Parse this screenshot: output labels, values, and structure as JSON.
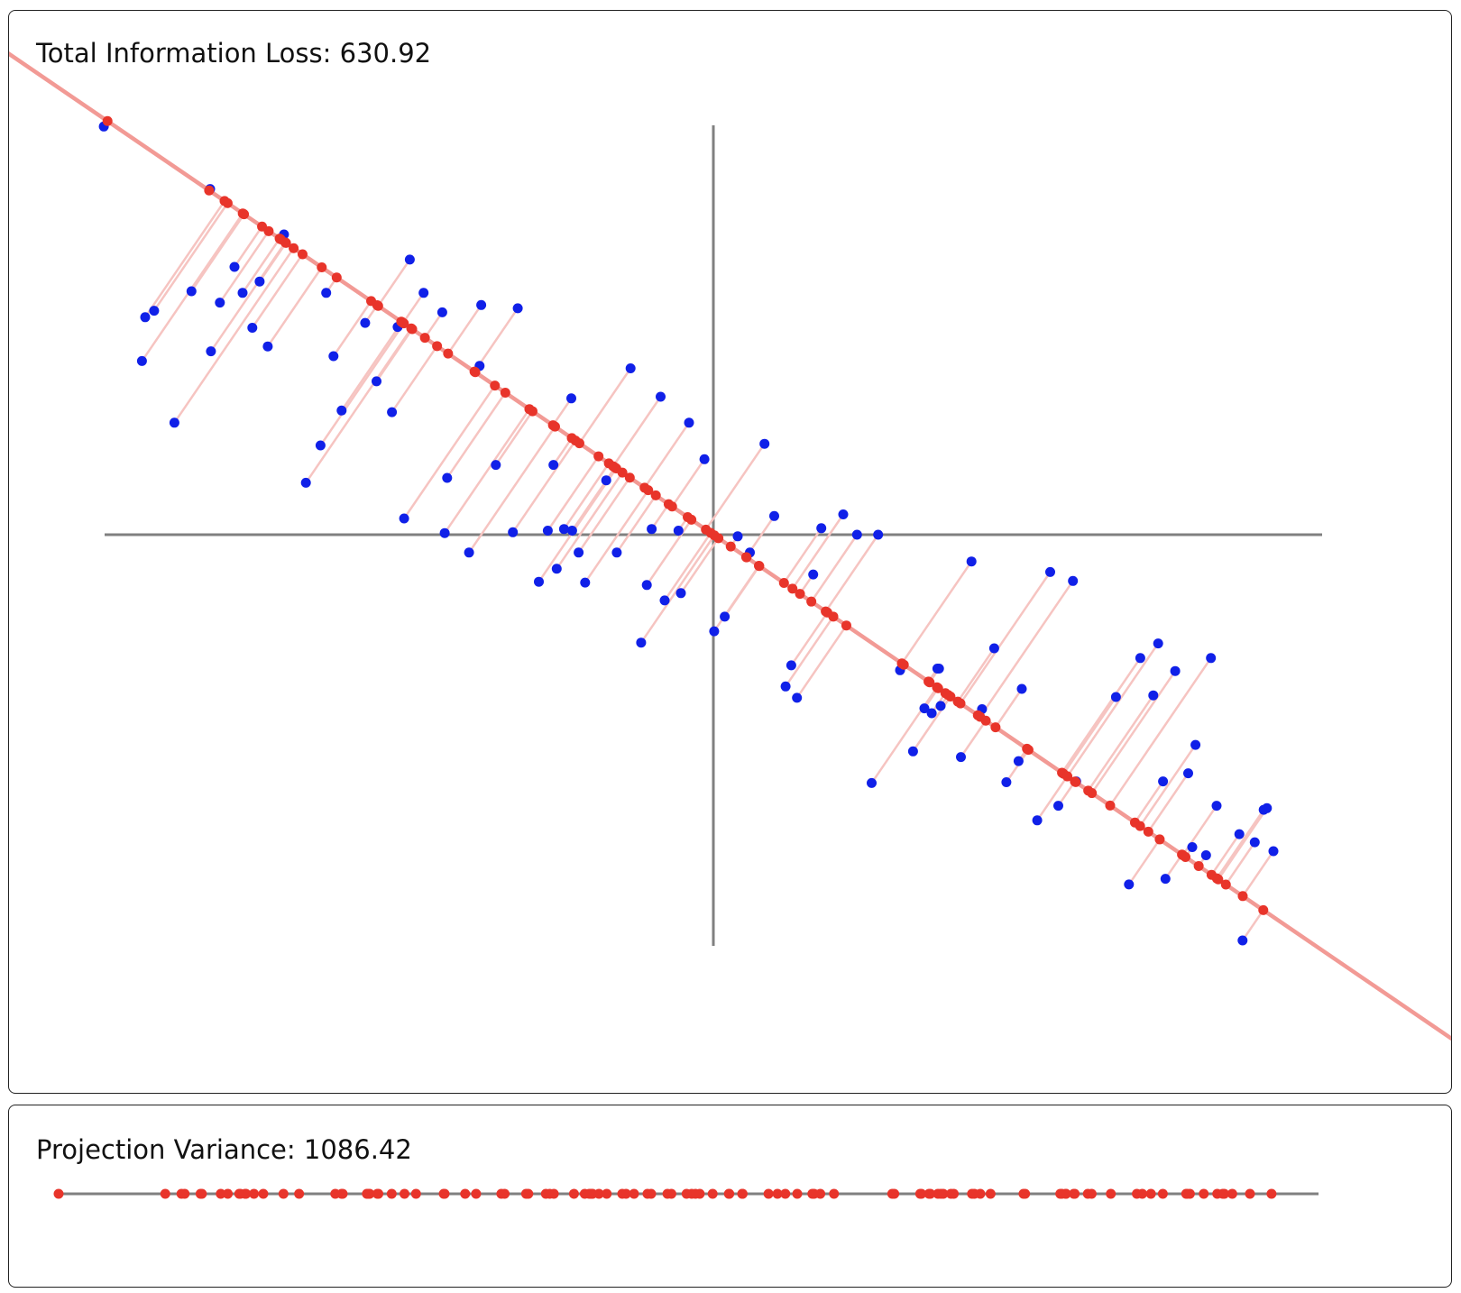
{
  "loss_panel": {
    "label": "Total Information Loss:",
    "value": "630.92"
  },
  "variance_panel": {
    "label": "Projection Variance:",
    "value": "1086.42"
  },
  "colors": {
    "data_point": "#1020e8",
    "projected_point": "#e8342a",
    "projection_line": "#f29a95",
    "residual_line": "#f6c4c1",
    "axis": "#808080"
  },
  "chart_data": {
    "type": "scatter",
    "title": "",
    "xlabel": "",
    "ylabel": "",
    "xlim": [
      -75,
      75
    ],
    "ylim": [
      -50,
      50
    ],
    "grid": false,
    "principal_direction": [
      0.826,
      -0.564
    ],
    "points": [
      [
        -75.1,
        50.3
      ],
      [
        -62.0,
        42.6
      ],
      [
        -52.9,
        37.0
      ],
      [
        -64.3,
        30.0
      ],
      [
        -55.9,
        31.2
      ],
      [
        -61.9,
        22.6
      ],
      [
        -60.8,
        28.6
      ],
      [
        -59.0,
        33.0
      ],
      [
        -68.9,
        27.6
      ],
      [
        -70.4,
        21.4
      ],
      [
        -70.0,
        26.8
      ],
      [
        -66.4,
        13.8
      ],
      [
        -58.0,
        29.8
      ],
      [
        -54.9,
        23.2
      ],
      [
        -56.8,
        25.5
      ],
      [
        -47.7,
        29.8
      ],
      [
        -37.4,
        33.9
      ],
      [
        -38.9,
        25.6
      ],
      [
        -35.7,
        29.8
      ],
      [
        -42.9,
        26.1
      ],
      [
        -46.8,
        22.0
      ],
      [
        -45.8,
        15.3
      ],
      [
        -48.4,
        11.0
      ],
      [
        -33.4,
        27.4
      ],
      [
        -41.5,
        18.9
      ],
      [
        -28.6,
        28.3
      ],
      [
        -24.1,
        27.9
      ],
      [
        -39.6,
        15.1
      ],
      [
        -28.8,
        20.8
      ],
      [
        -50.2,
        6.4
      ],
      [
        -38.1,
        2.0
      ],
      [
        -32.8,
        7.0
      ],
      [
        -17.5,
        16.8
      ],
      [
        -19.7,
        8.6
      ],
      [
        -20.4,
        0.5
      ],
      [
        -24.7,
        0.3
      ],
      [
        -33.1,
        0.2
      ],
      [
        -30.1,
        -2.2
      ],
      [
        -26.8,
        8.6
      ],
      [
        -13.2,
        6.7
      ],
      [
        -18.4,
        0.7
      ],
      [
        -21.5,
        -5.8
      ],
      [
        -10.2,
        20.5
      ],
      [
        -19.3,
        -4.2
      ],
      [
        -17.4,
        0.5
      ],
      [
        -16.6,
        -2.2
      ],
      [
        -6.5,
        17.0
      ],
      [
        -3.0,
        13.8
      ],
      [
        -7.6,
        0.7
      ],
      [
        -15.8,
        -5.9
      ],
      [
        -11.9,
        -2.2
      ],
      [
        -4.3,
        0.5
      ],
      [
        -8.2,
        -6.2
      ],
      [
        -6.0,
        -8.1
      ],
      [
        -8.9,
        -13.3
      ],
      [
        -4.0,
        -7.2
      ],
      [
        -1.1,
        9.3
      ],
      [
        6.3,
        11.2
      ],
      [
        0.1,
        -11.9
      ],
      [
        1.4,
        -10.1
      ],
      [
        4.5,
        -2.2
      ],
      [
        3.0,
        -0.2
      ],
      [
        7.5,
        2.3
      ],
      [
        13.3,
        0.8
      ],
      [
        16.0,
        2.5
      ],
      [
        17.7,
        0.0
      ],
      [
        20.3,
        0.0
      ],
      [
        12.3,
        -4.9
      ],
      [
        9.6,
        -16.1
      ],
      [
        10.3,
        -20.1
      ],
      [
        8.9,
        -18.7
      ],
      [
        19.5,
        -30.6
      ],
      [
        23.0,
        -16.7
      ],
      [
        24.6,
        -26.7
      ],
      [
        26.0,
        -21.4
      ],
      [
        27.6,
        -16.5
      ],
      [
        28.0,
        -21.1
      ],
      [
        30.5,
        -27.4
      ],
      [
        31.8,
        -3.3
      ],
      [
        27.8,
        -16.5
      ],
      [
        26.9,
        -22.0
      ],
      [
        33.1,
        -21.5
      ],
      [
        34.6,
        -14.0
      ],
      [
        38.0,
        -19.0
      ],
      [
        37.6,
        -27.9
      ],
      [
        36.1,
        -30.5
      ],
      [
        41.5,
        -4.6
      ],
      [
        39.9,
        -35.2
      ],
      [
        42.5,
        -33.4
      ],
      [
        44.3,
        -5.7
      ],
      [
        44.7,
        -30.4
      ],
      [
        49.6,
        -20.0
      ],
      [
        52.6,
        -15.2
      ],
      [
        54.2,
        -19.8
      ],
      [
        54.8,
        -13.4
      ],
      [
        56.9,
        -16.8
      ],
      [
        55.4,
        -30.4
      ],
      [
        51.2,
        -43.1
      ],
      [
        55.7,
        -42.4
      ],
      [
        59.4,
        -25.9
      ],
      [
        61.3,
        -15.2
      ],
      [
        58.5,
        -29.4
      ],
      [
        60.7,
        -39.5
      ],
      [
        59.0,
        -38.5
      ],
      [
        62.0,
        -33.4
      ],
      [
        64.8,
        -36.9
      ],
      [
        66.7,
        -37.9
      ],
      [
        65.2,
        -50.0
      ],
      [
        67.8,
        -33.9
      ],
      [
        68.2,
        -33.7
      ],
      [
        69.0,
        -39.0
      ]
    ]
  }
}
